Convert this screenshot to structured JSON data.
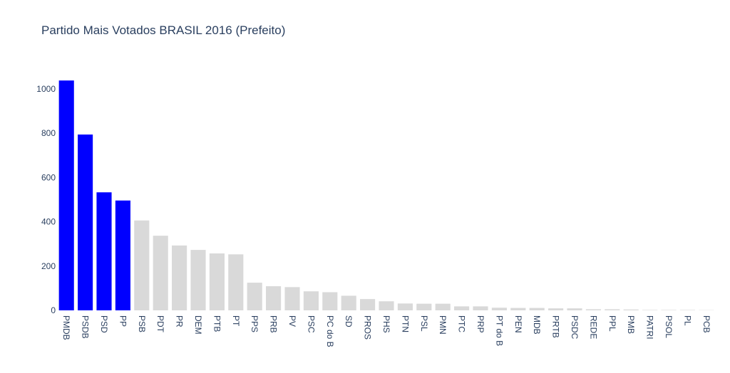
{
  "chart_data": {
    "type": "bar",
    "title": "Partido Mais Votados BRASIL 2016 (Prefeito)",
    "xlabel": "",
    "ylabel": "",
    "ylim": [
      0,
      1080
    ],
    "yticks": [
      0,
      200,
      400,
      600,
      800,
      1000
    ],
    "tick_labels": [
      "0",
      "200",
      "400",
      "600",
      "800",
      "1000"
    ],
    "grid": false,
    "legend": "none",
    "highlight_color": "#0000ff",
    "base_color": "#d9d9d9",
    "highlight_count": 4,
    "categories": [
      "PMDB",
      "PSDB",
      "PSD",
      "PP",
      "PSB",
      "PDT",
      "PR",
      "DEM",
      "PTB",
      "PT",
      "PPS",
      "PRB",
      "PV",
      "PSC",
      "PC do B",
      "SD",
      "PROS",
      "PHS",
      "PTN",
      "PSL",
      "PMN",
      "PTC",
      "PRP",
      "PT do B",
      "PEN",
      "MDB",
      "PRTB",
      "PSDC",
      "REDE",
      "PPL",
      "PMB",
      "PATRI",
      "PSOL",
      "PL",
      "PCB"
    ],
    "values": [
      1038,
      794,
      533,
      496,
      406,
      337,
      293,
      273,
      257,
      253,
      125,
      109,
      105,
      86,
      82,
      66,
      51,
      41,
      31,
      30,
      30,
      18,
      18,
      12,
      11,
      11,
      9,
      9,
      5,
      5,
      4,
      2,
      2,
      2,
      1
    ]
  }
}
